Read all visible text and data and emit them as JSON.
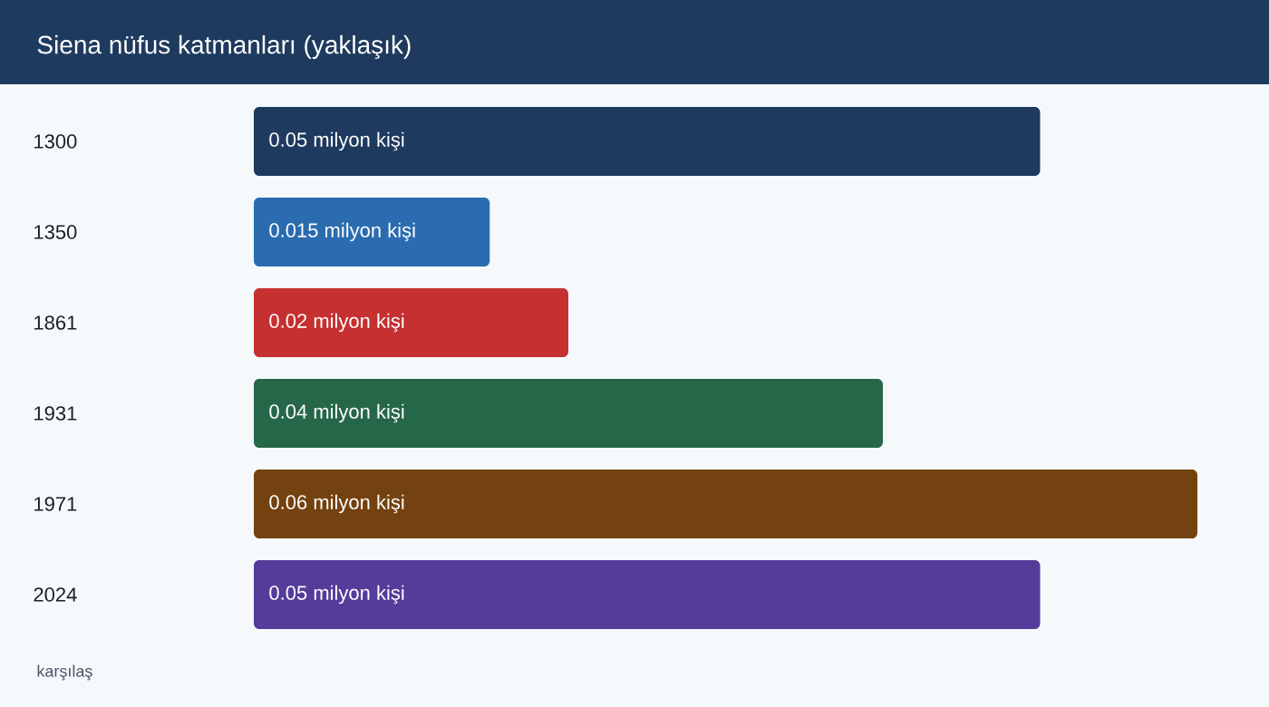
{
  "chart_data": {
    "type": "bar",
    "orientation": "horizontal",
    "title": "Siena nüfus katmanları (yaklaşık)",
    "categories": [
      "1300",
      "1350",
      "1861",
      "1931",
      "1971",
      "2024"
    ],
    "values": [
      0.05,
      0.015,
      0.02,
      0.04,
      0.06,
      0.05
    ],
    "colors": [
      "#1f3a5f",
      "#2b6cb0",
      "#c53030",
      "#276749",
      "#744210",
      "#553c9a"
    ],
    "value_labels": [
      "0.05 milyon kişi",
      "0.015 milyon kişi",
      "0.02 milyon kişi",
      "0.04 milyon kişi",
      "0.06 milyon kişi",
      "0.05 milyon kişi"
    ],
    "annotations": [
      "karşılaş"
    ]
  }
}
